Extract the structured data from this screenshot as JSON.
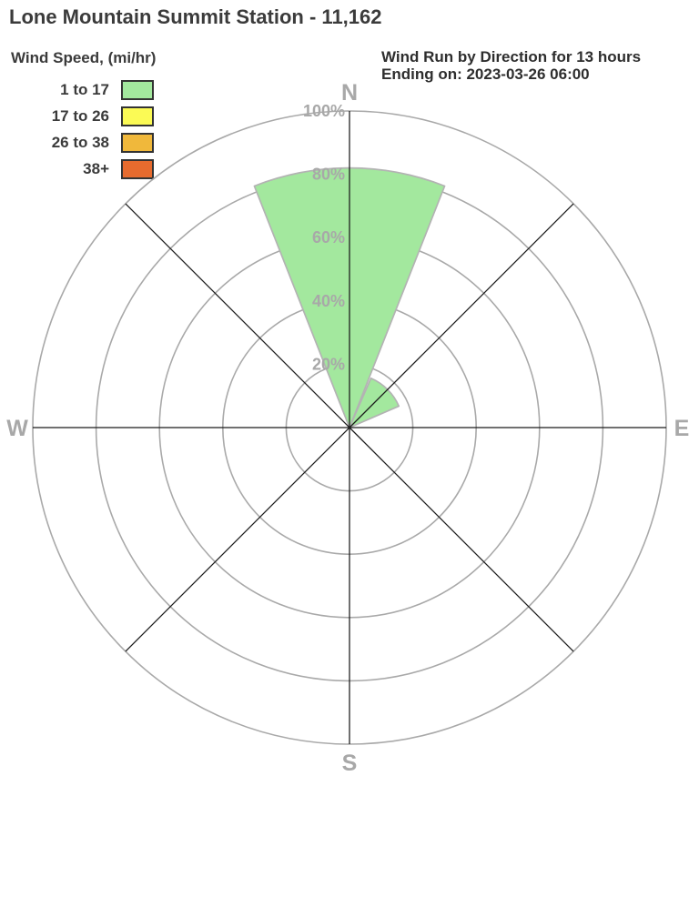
{
  "title": "Lone Mountain Summit Station - 11,162",
  "legend": {
    "title": "Wind Speed, (mi/hr)",
    "items": [
      {
        "label": "1 to 17",
        "color": "#a3e89e"
      },
      {
        "label": "17 to 26",
        "color": "#fbfa55"
      },
      {
        "label": "26 to 38",
        "color": "#f0b83b"
      },
      {
        "label": "38+",
        "color": "#e76b2e"
      }
    ]
  },
  "header": {
    "line1": "Wind Run by Direction for 13 hours",
    "line2": "Ending on: 2023-03-26 06:00"
  },
  "chart_data": {
    "type": "wind-rose",
    "title": "Wind Run by Direction for 13 hours Ending on: 2023-03-26 06:00",
    "units": "percent of wind run",
    "compass_labels": [
      "N",
      "E",
      "S",
      "W"
    ],
    "ring_percents": [
      20,
      40,
      60,
      80,
      100
    ],
    "ring_labels": [
      "20%",
      "40%",
      "60%",
      "80%",
      "100%"
    ],
    "sector_width_deg": 45,
    "petal_span_deg": 43,
    "petals": [
      {
        "direction": "N",
        "center_deg": 0,
        "value_pct": 82,
        "speed_bin": "1 to 17",
        "color": "#a3e89e"
      },
      {
        "direction": "NE",
        "center_deg": 45,
        "value_pct": 17,
        "speed_bin": "1 to 17",
        "color": "#a3e89e"
      }
    ],
    "colors": {
      "grid_ring": "#a9a9a9",
      "spoke": "#1a1a1a",
      "axis_label": "#a8a8a8",
      "petal_stroke": "#b3b3b3"
    }
  }
}
